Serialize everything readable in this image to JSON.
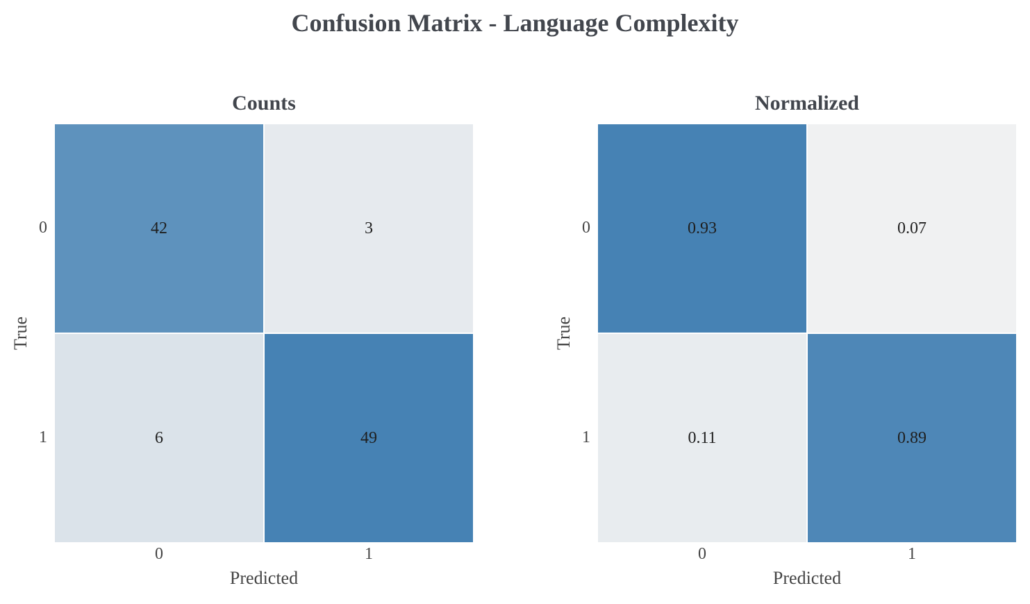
{
  "title": "Confusion Matrix - Language Complexity",
  "chart_data": [
    {
      "type": "heatmap",
      "title": "Counts",
      "xlabel": "Predicted",
      "ylabel": "True",
      "x_categories": [
        "0",
        "1"
      ],
      "y_categories": [
        "0",
        "1"
      ],
      "values": [
        [
          42,
          3
        ],
        [
          6,
          49
        ]
      ],
      "labels": [
        [
          "42",
          "3"
        ],
        [
          "6",
          "49"
        ]
      ],
      "vmin": 0,
      "vmax": 49,
      "colormap": [
        "#f0f1f2",
        "#4682b4"
      ],
      "grid": false
    },
    {
      "type": "heatmap",
      "title": "Normalized",
      "xlabel": "Predicted",
      "ylabel": "True",
      "x_categories": [
        "0",
        "1"
      ],
      "y_categories": [
        "0",
        "1"
      ],
      "values": [
        [
          0.93,
          0.07
        ],
        [
          0.11,
          0.89
        ]
      ],
      "labels": [
        [
          "0.93",
          "0.07"
        ],
        [
          "0.11",
          "0.89"
        ]
      ],
      "vmin": 0.07,
      "vmax": 0.93,
      "colormap": [
        "#f0f1f2",
        "#4682b4"
      ],
      "grid": false
    }
  ]
}
